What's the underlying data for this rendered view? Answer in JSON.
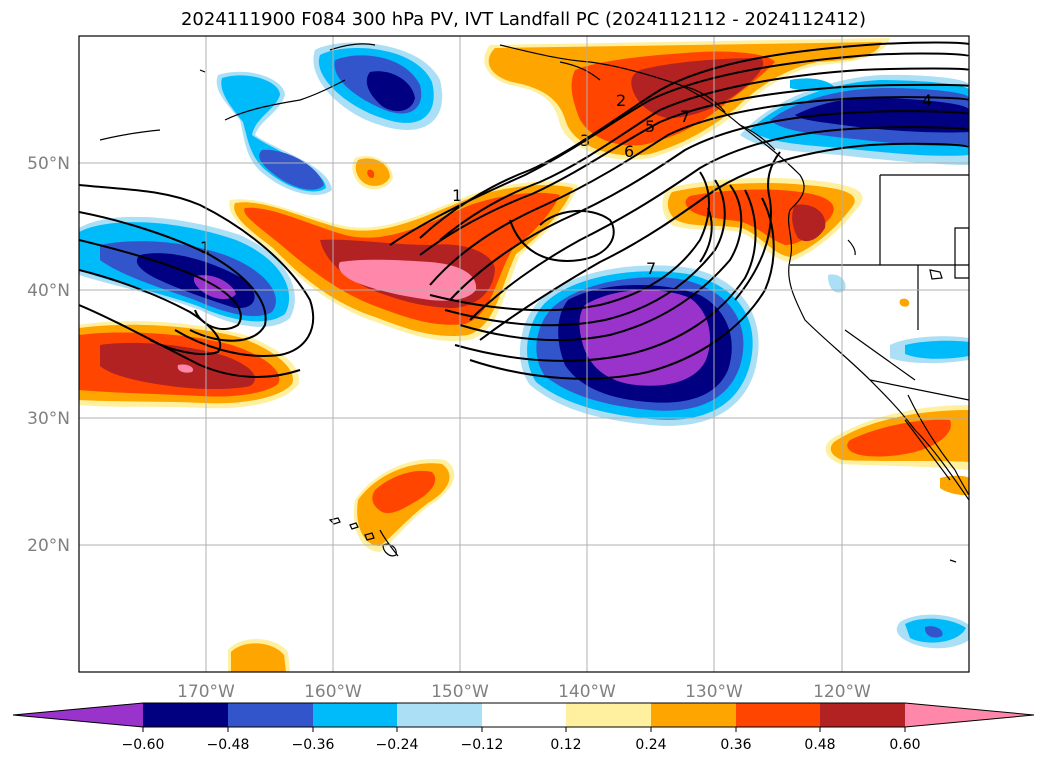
{
  "title": "2024111900 F084 300 hPa PV, IVT Landfall PC (2024112112 - 2024112412)",
  "map": {
    "lon_range": [
      -180,
      -110
    ],
    "lat_range": [
      10,
      60
    ],
    "lat_labels": [
      {
        "lat": 50,
        "text": "50°N"
      },
      {
        "lat": 40,
        "text": "40°N"
      },
      {
        "lat": 30,
        "text": "30°N"
      },
      {
        "lat": 20,
        "text": "20°N"
      }
    ],
    "lon_labels": [
      {
        "lon": -170,
        "text": "170°W"
      },
      {
        "lon": -160,
        "text": "160°W"
      },
      {
        "lon": -150,
        "text": "150°W"
      },
      {
        "lon": -140,
        "text": "140°W"
      },
      {
        "lon": -130,
        "text": "130°W"
      },
      {
        "lon": -120,
        "text": "120°W"
      }
    ],
    "contour_labels": [
      "1",
      "2",
      "3",
      "4",
      "5",
      "6",
      "7"
    ],
    "colors": {
      "neg_060": "#9933cc",
      "neg_048": "#000080",
      "neg_036": "#3355cc",
      "neg_024": "#00bbf9",
      "neg_012": "#aadff5",
      "pos_012": "#fff0a0",
      "pos_024": "#ffa500",
      "pos_036": "#ff4500",
      "pos_048": "#b22222",
      "pos_060": "#ff88aa"
    }
  },
  "colorbar": {
    "colors": [
      "#9933cc",
      "#000080",
      "#3355cc",
      "#00bbf9",
      "#aadff5",
      "#ffffff",
      "#fff0a0",
      "#ffa500",
      "#ff4500",
      "#b22222",
      "#ff88aa"
    ],
    "ticks": [
      "−0.60",
      "−0.48",
      "−0.36",
      "−0.24",
      "−0.12",
      "0.12",
      "0.24",
      "0.36",
      "0.48",
      "0.60"
    ]
  }
}
